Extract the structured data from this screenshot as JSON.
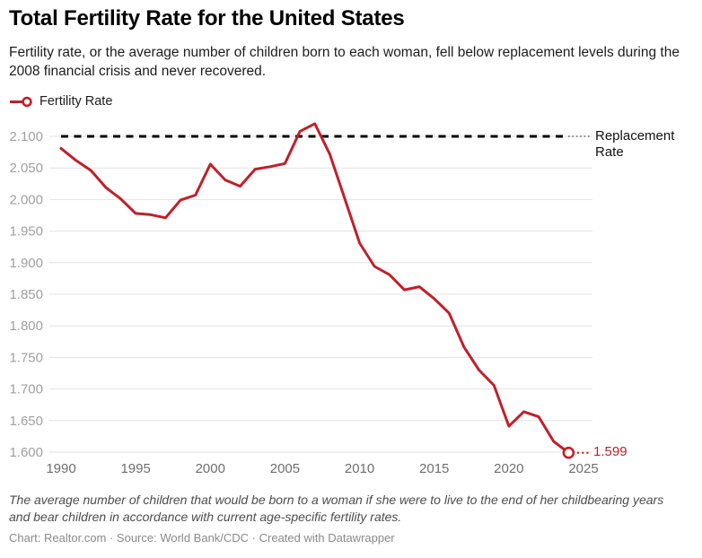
{
  "header": {
    "title": "Total Fertility Rate for the United States",
    "subtitle": "Fertility rate, or the average number of children born to each woman, fell below replacement levels during the 2008 financial crisis and never recovered."
  },
  "legend": {
    "label": "Fertility Rate"
  },
  "colors": {
    "series_red": "#c0202a",
    "replacement_line": "#000000",
    "gridline": "#e2e2e2",
    "y_tick_label": "#a0a0a0",
    "x_tick_label": "#6e6e6e"
  },
  "chart_data": {
    "type": "line",
    "title": "Total Fertility Rate for the United States",
    "xlabel": "",
    "ylabel": "",
    "xlim": [
      1990,
      2025
    ],
    "ylim": [
      1.6,
      2.125
    ],
    "grid": "horizontal",
    "legend_position": "top-left",
    "xticks": [
      1990,
      1995,
      2000,
      2005,
      2010,
      2015,
      2020,
      2025
    ],
    "yticks": [
      "2.100",
      "2.050",
      "2.000",
      "1.950",
      "1.900",
      "1.850",
      "1.800",
      "1.750",
      "1.700",
      "1.650",
      "1.600"
    ],
    "series": [
      {
        "name": "Fertility Rate",
        "years": [
          1990,
          1991,
          1992,
          1993,
          1994,
          1995,
          1996,
          1997,
          1998,
          1999,
          2000,
          2001,
          2002,
          2003,
          2004,
          2005,
          2006,
          2007,
          2008,
          2009,
          2010,
          2011,
          2012,
          2013,
          2014,
          2015,
          2016,
          2017,
          2018,
          2019,
          2020,
          2021,
          2022,
          2023,
          2024
        ],
        "values": [
          2.081,
          2.062,
          2.046,
          2.019,
          2.001,
          1.978,
          1.976,
          1.971,
          1.999,
          2.007,
          2.056,
          2.031,
          2.021,
          2.048,
          2.052,
          2.057,
          2.108,
          2.12,
          2.072,
          2.002,
          1.931,
          1.894,
          1.881,
          1.857,
          1.862,
          1.843,
          1.82,
          1.766,
          1.73,
          1.706,
          1.641,
          1.664,
          1.656,
          1.617,
          1.599
        ]
      }
    ],
    "annotations": {
      "replacement_line": {
        "value": 2.1,
        "label": "Replacement Rate",
        "style": "dashed-black"
      },
      "end_label": {
        "year": 2024,
        "value": 1.599,
        "text": "1.599"
      }
    }
  },
  "footer": {
    "note": "The average number of children that would be born to a woman if she were to live to the end of her childbearing years and bear children in accordance with current age-specific fertility rates.",
    "byline": "Chart: Realtor.com · Source: World Bank/CDC · Created with Datawrapper"
  }
}
